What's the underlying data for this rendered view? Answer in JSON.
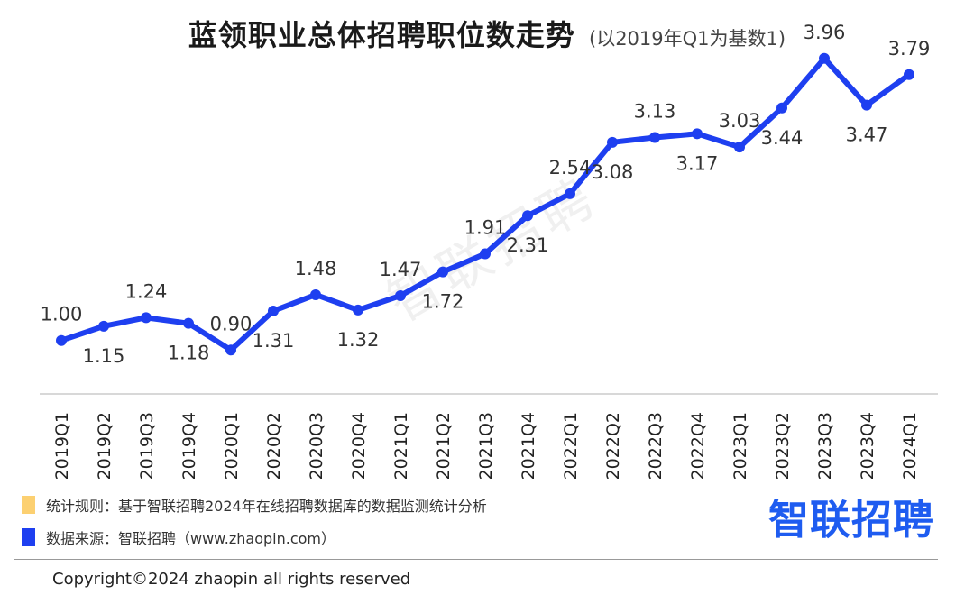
{
  "chart_data": {
    "type": "line",
    "title": "蓝领职业总体招聘职位数走势",
    "subtitle": "(以2019年Q1为基数1)",
    "categories": [
      "2019Q1",
      "2019Q2",
      "2019Q3",
      "2019Q4",
      "2020Q1",
      "2020Q2",
      "2020Q3",
      "2020Q4",
      "2021Q1",
      "2021Q2",
      "2021Q3",
      "2021Q4",
      "2022Q1",
      "2022Q2",
      "2022Q3",
      "2022Q4",
      "2023Q1",
      "2023Q2",
      "2023Q3",
      "2023Q4",
      "2024Q1"
    ],
    "values": [
      1.0,
      1.15,
      1.24,
      1.18,
      0.9,
      1.31,
      1.48,
      1.32,
      1.47,
      1.72,
      1.91,
      2.31,
      2.54,
      3.08,
      3.13,
      3.17,
      3.03,
      3.44,
      3.96,
      3.47,
      3.79
    ],
    "data_labels": [
      "1.00",
      "1.15",
      "1.24",
      "1.18",
      "0.90",
      "1.31",
      "1.48",
      "1.32",
      "1.47",
      "1.72",
      "1.91",
      "2.31",
      "2.54",
      "3.08",
      "3.13",
      "3.17",
      "3.03",
      "3.44",
      "3.96",
      "3.47",
      "3.79"
    ],
    "label_positions": [
      "above",
      "below",
      "above",
      "below",
      "above",
      "below",
      "above",
      "below",
      "above",
      "below",
      "above",
      "below",
      "above",
      "below",
      "above",
      "below",
      "above",
      "below",
      "above",
      "below",
      "above"
    ],
    "ylim": [
      0.6,
      4.1
    ],
    "xlabel": "",
    "ylabel": "",
    "grid": false,
    "line_color": "#1e3ff0"
  },
  "legend": {
    "rule": {
      "text": "统计规则：基于智联招聘2024年在线招聘数据库的数据监测统计分析",
      "color": "#fcd071"
    },
    "source": {
      "text": "数据来源：智联招聘（www.zhaopin.com）",
      "color": "#1e3ff0"
    }
  },
  "logo": {
    "text": "智联招聘",
    "color": "#1e5cf0"
  },
  "watermark": "智联招聘",
  "copyright": "Copyright©2024 zhaopin all rights reserved"
}
